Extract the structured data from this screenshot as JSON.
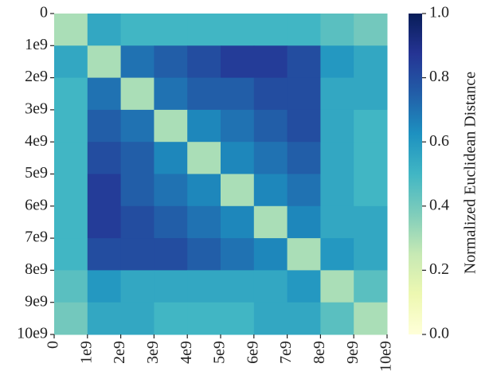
{
  "chart_data": {
    "type": "heatmap",
    "colormap": "YlGnBu",
    "colorbar_label": "Normalized Euclidean Distance",
    "xlim": [
      0,
      10000000000
    ],
    "ylim": [
      0,
      10000000000
    ],
    "clim": [
      0,
      1
    ],
    "xticks": [
      0,
      {
        "value": 1000000000,
        "label": "1e9"
      },
      {
        "value": 2000000000,
        "label": "2e9"
      },
      {
        "value": 3000000000,
        "label": "3e9"
      },
      {
        "value": 4000000000,
        "label": "4e9"
      },
      {
        "value": 5000000000,
        "label": "5e9"
      },
      {
        "value": 6000000000,
        "label": "6e9"
      },
      {
        "value": 7000000000,
        "label": "7e9"
      },
      {
        "value": 8000000000,
        "label": "8e9"
      },
      {
        "value": 9000000000,
        "label": "9e9"
      },
      {
        "value": 10000000000,
        "label": "10e9"
      }
    ],
    "yticks": [
      0,
      {
        "value": 1000000000,
        "label": "1e9"
      },
      {
        "value": 2000000000,
        "label": "2e9"
      },
      {
        "value": 3000000000,
        "label": "3e9"
      },
      {
        "value": 4000000000,
        "label": "4e9"
      },
      {
        "value": 5000000000,
        "label": "5e9"
      },
      {
        "value": 6000000000,
        "label": "6e9"
      },
      {
        "value": 7000000000,
        "label": "7e9"
      },
      {
        "value": 8000000000,
        "label": "8e9"
      },
      {
        "value": 9000000000,
        "label": "9e9"
      },
      {
        "value": 10000000000,
        "label": "10e9"
      }
    ],
    "cticks": [
      {
        "value": 0,
        "label": "0.0"
      },
      0.2,
      0.4,
      0.6,
      0.8,
      {
        "value": 1,
        "label": "1.0"
      }
    ],
    "z": [
      [
        0.3,
        0.55,
        0.5,
        0.5,
        0.5,
        0.5,
        0.5,
        0.5,
        0.45,
        0.4
      ],
      [
        0.55,
        0.3,
        0.7,
        0.75,
        0.8,
        0.85,
        0.85,
        0.8,
        0.6,
        0.55
      ],
      [
        0.5,
        0.7,
        0.3,
        0.7,
        0.75,
        0.75,
        0.8,
        0.8,
        0.55,
        0.55
      ],
      [
        0.5,
        0.75,
        0.7,
        0.3,
        0.65,
        0.7,
        0.75,
        0.8,
        0.55,
        0.5
      ],
      [
        0.5,
        0.8,
        0.75,
        0.65,
        0.3,
        0.65,
        0.7,
        0.75,
        0.55,
        0.5
      ],
      [
        0.5,
        0.85,
        0.75,
        0.7,
        0.65,
        0.3,
        0.65,
        0.7,
        0.55,
        0.5
      ],
      [
        0.5,
        0.85,
        0.8,
        0.75,
        0.7,
        0.65,
        0.3,
        0.65,
        0.55,
        0.55
      ],
      [
        0.5,
        0.8,
        0.8,
        0.8,
        0.75,
        0.7,
        0.65,
        0.3,
        0.6,
        0.55
      ],
      [
        0.45,
        0.6,
        0.55,
        0.55,
        0.55,
        0.55,
        0.55,
        0.6,
        0.3,
        0.45
      ],
      [
        0.4,
        0.55,
        0.55,
        0.5,
        0.5,
        0.5,
        0.55,
        0.55,
        0.45,
        0.3
      ]
    ]
  }
}
